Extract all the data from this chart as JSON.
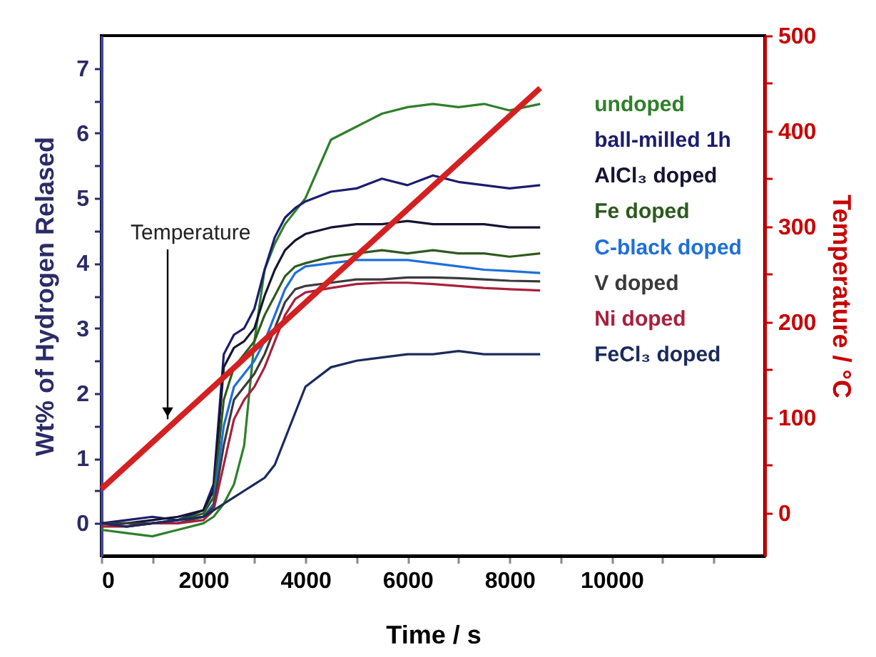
{
  "chart_data": {
    "type": "line",
    "xlabel": "Time / s",
    "ylabel": "Wt% of Hydrogen Relased",
    "y2label": "Temperature / °C",
    "x": [
      0,
      500,
      1000,
      1500,
      2000,
      2200,
      2400,
      2600,
      2800,
      3000,
      3200,
      3400,
      3600,
      3800,
      4000,
      4500,
      5000,
      5500,
      6000,
      6500,
      7000,
      7500,
      8000,
      8600
    ],
    "series": [
      {
        "name": "undoped",
        "color": "#2f7f2a",
        "values": [
          -0.1,
          -0.15,
          -0.2,
          -0.1,
          0.0,
          0.1,
          0.3,
          0.6,
          1.2,
          2.8,
          3.9,
          4.3,
          4.6,
          4.8,
          5.0,
          5.9,
          6.1,
          6.3,
          6.4,
          6.45,
          6.4,
          6.45,
          6.35,
          6.45
        ]
      },
      {
        "name": "ball-milled 1h",
        "color": "#1c1c6e",
        "values": [
          0,
          0.05,
          0.1,
          0.05,
          0.2,
          0.6,
          2.6,
          2.9,
          3.0,
          3.3,
          3.9,
          4.4,
          4.7,
          4.85,
          4.95,
          5.1,
          5.15,
          5.3,
          5.2,
          5.35,
          5.25,
          5.2,
          5.15,
          5.2
        ]
      },
      {
        "name": "AlCl₃ doped",
        "color": "#141432",
        "values": [
          0,
          0,
          0.05,
          0.1,
          0.2,
          0.5,
          2.4,
          2.7,
          2.8,
          3.0,
          3.5,
          3.9,
          4.2,
          4.35,
          4.45,
          4.55,
          4.6,
          4.6,
          4.65,
          4.6,
          4.6,
          4.6,
          4.55,
          4.55
        ]
      },
      {
        "name": "Fe doped",
        "color": "#2d5a1e",
        "values": [
          0,
          -0.05,
          0,
          0.05,
          0.15,
          0.4,
          1.9,
          2.4,
          2.6,
          2.8,
          3.2,
          3.5,
          3.8,
          3.95,
          4.0,
          4.1,
          4.15,
          4.2,
          4.15,
          4.2,
          4.15,
          4.15,
          4.1,
          4.15
        ]
      },
      {
        "name": "C-black doped",
        "color": "#1e6fd9",
        "values": [
          null,
          null,
          0,
          0.05,
          0.1,
          0.3,
          1.5,
          2.1,
          2.3,
          2.5,
          2.8,
          3.2,
          3.6,
          3.85,
          3.95,
          4.0,
          4.05,
          4.05,
          4.05,
          4.0,
          3.95,
          3.9,
          3.88,
          3.85
        ]
      },
      {
        "name": "V doped",
        "color": "#3a3a3a",
        "values": [
          0,
          0,
          0,
          0,
          0.1,
          0.25,
          1.2,
          1.9,
          2.1,
          2.3,
          2.6,
          3.0,
          3.4,
          3.6,
          3.65,
          3.7,
          3.75,
          3.75,
          3.78,
          3.78,
          3.77,
          3.75,
          3.73,
          3.72
        ]
      },
      {
        "name": "Ni doped",
        "color": "#a8203c",
        "values": [
          -0.05,
          -0.05,
          0,
          0,
          0.05,
          0.2,
          0.9,
          1.6,
          1.9,
          2.1,
          2.4,
          2.8,
          3.2,
          3.45,
          3.55,
          3.62,
          3.68,
          3.7,
          3.7,
          3.68,
          3.65,
          3.62,
          3.6,
          3.58
        ]
      },
      {
        "name": "FeCl₃ doped",
        "color": "#1a2a5a",
        "values": [
          0,
          -0.05,
          0,
          0.05,
          0.1,
          0.2,
          0.3,
          0.4,
          0.5,
          0.6,
          0.7,
          0.9,
          1.3,
          1.7,
          2.1,
          2.4,
          2.5,
          2.55,
          2.6,
          2.6,
          2.65,
          2.6,
          2.6,
          2.6
        ]
      },
      {
        "color": "#d42020",
        "axis": "y2",
        "x": [
          0,
          8600
        ],
        "values": [
          25,
          445
        ]
      }
    ],
    "xlim": [
      0,
      13000
    ],
    "xticks": [
      0,
      {
        "value": 1000,
        "label": null
      },
      2000,
      {
        "value": 3000,
        "label": null
      },
      4000,
      {
        "value": 5000,
        "label": null
      },
      6000,
      {
        "value": 7000,
        "label": null
      },
      8000,
      {
        "value": 9000,
        "label": null
      },
      10000,
      {
        "value": 11000,
        "label": null
      },
      {
        "value": 12000,
        "label": null
      }
    ],
    "ylim": [
      -0.5,
      7.5
    ],
    "yticks": [
      0,
      {
        "value": 0.5,
        "label": null
      },
      1,
      {
        "value": 1.5,
        "label": null
      },
      2,
      {
        "value": 2.5,
        "label": null
      },
      3,
      {
        "value": 3.5,
        "label": null
      },
      4,
      {
        "value": 4.5,
        "label": null
      },
      5,
      {
        "value": 5.5,
        "label": null
      },
      6,
      {
        "value": 6.5,
        "label": null
      },
      7
    ],
    "y2lim": [
      -45,
      500
    ],
    "y2ticks": [
      0,
      {
        "value": 50,
        "label": null
      },
      100,
      {
        "value": 150,
        "label": null
      },
      200,
      {
        "value": 250,
        "label": null
      },
      300,
      {
        "value": 350,
        "label": null
      },
      400,
      {
        "value": 450,
        "label": null
      },
      500
    ],
    "annotations": [
      {
        "text": "Temperature",
        "x": 1300,
        "y": 1.6
      }
    ],
    "grid": false,
    "legend": false,
    "marker": "none",
    "line_style": "solid"
  }
}
